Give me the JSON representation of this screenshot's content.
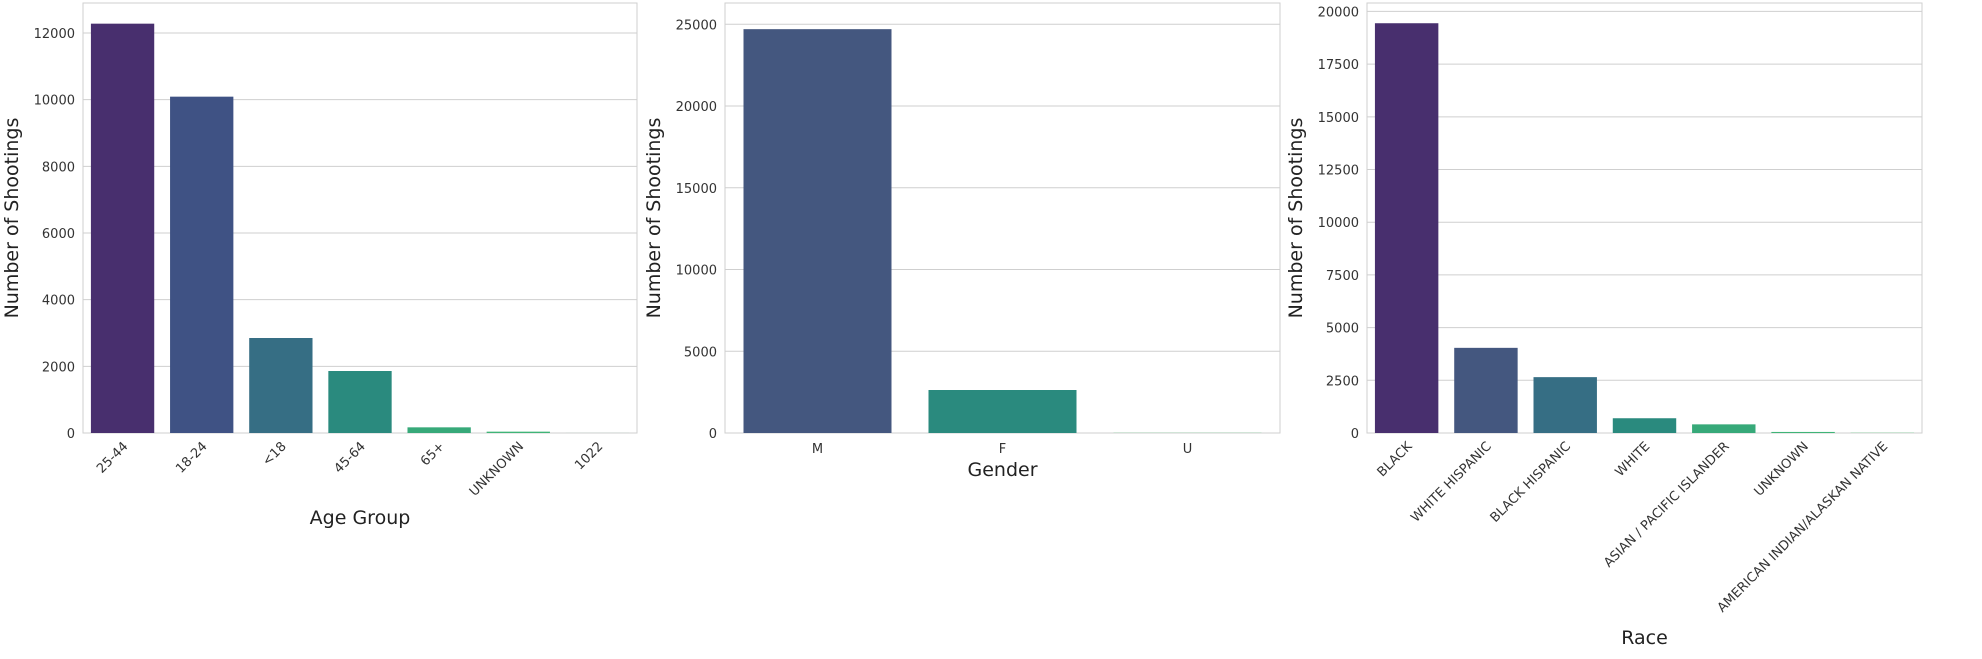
{
  "chart_data": [
    {
      "type": "bar",
      "xlabel": "Age Group",
      "ylabel": "Number of Shootings",
      "categories": [
        "25-44",
        "18-24",
        "<18",
        "45-64",
        "65+",
        "UNKNOWN",
        "1022"
      ],
      "values": [
        12280,
        10090,
        2850,
        1860,
        170,
        40,
        1
      ],
      "ylim": [
        0,
        12900
      ],
      "yticks": [
        0,
        2000,
        4000,
        6000,
        8000,
        10000,
        12000
      ],
      "colors": [
        "#482f6e",
        "#3f5284",
        "#366e84",
        "#2a8a7e",
        "#37a979",
        "#40b477",
        "#4ac070"
      ],
      "grid": true
    },
    {
      "type": "bar",
      "xlabel": "Gender",
      "ylabel": "Number of Shootings",
      "categories": [
        "M",
        "F",
        "U"
      ],
      "values": [
        24700,
        2630,
        10
      ],
      "ylim": [
        0,
        26300
      ],
      "yticks": [
        0,
        5000,
        10000,
        15000,
        20000,
        25000
      ],
      "colors": [
        "#44577f",
        "#2a8a7e",
        "#4ac070"
      ],
      "grid": true
    },
    {
      "type": "bar",
      "xlabel": "Race",
      "ylabel": "Number of Shootings",
      "categories": [
        "BLACK",
        "WHITE HISPANIC",
        "BLACK HISPANIC",
        "WHITE",
        "ASIAN / PACIFIC ISLANDER",
        "UNKNOWN",
        "AMERICAN INDIAN/ALASKAN NATIVE"
      ],
      "values": [
        19440,
        4040,
        2650,
        700,
        410,
        50,
        10
      ],
      "ylim": [
        0,
        20400
      ],
      "yticks": [
        0,
        2500,
        5000,
        7500,
        10000,
        12500,
        15000,
        17500,
        20000
      ],
      "colors": [
        "#482f6e",
        "#44577f",
        "#366e84",
        "#2a8a7e",
        "#37a979",
        "#40b477",
        "#4ac070"
      ],
      "grid": true
    }
  ]
}
